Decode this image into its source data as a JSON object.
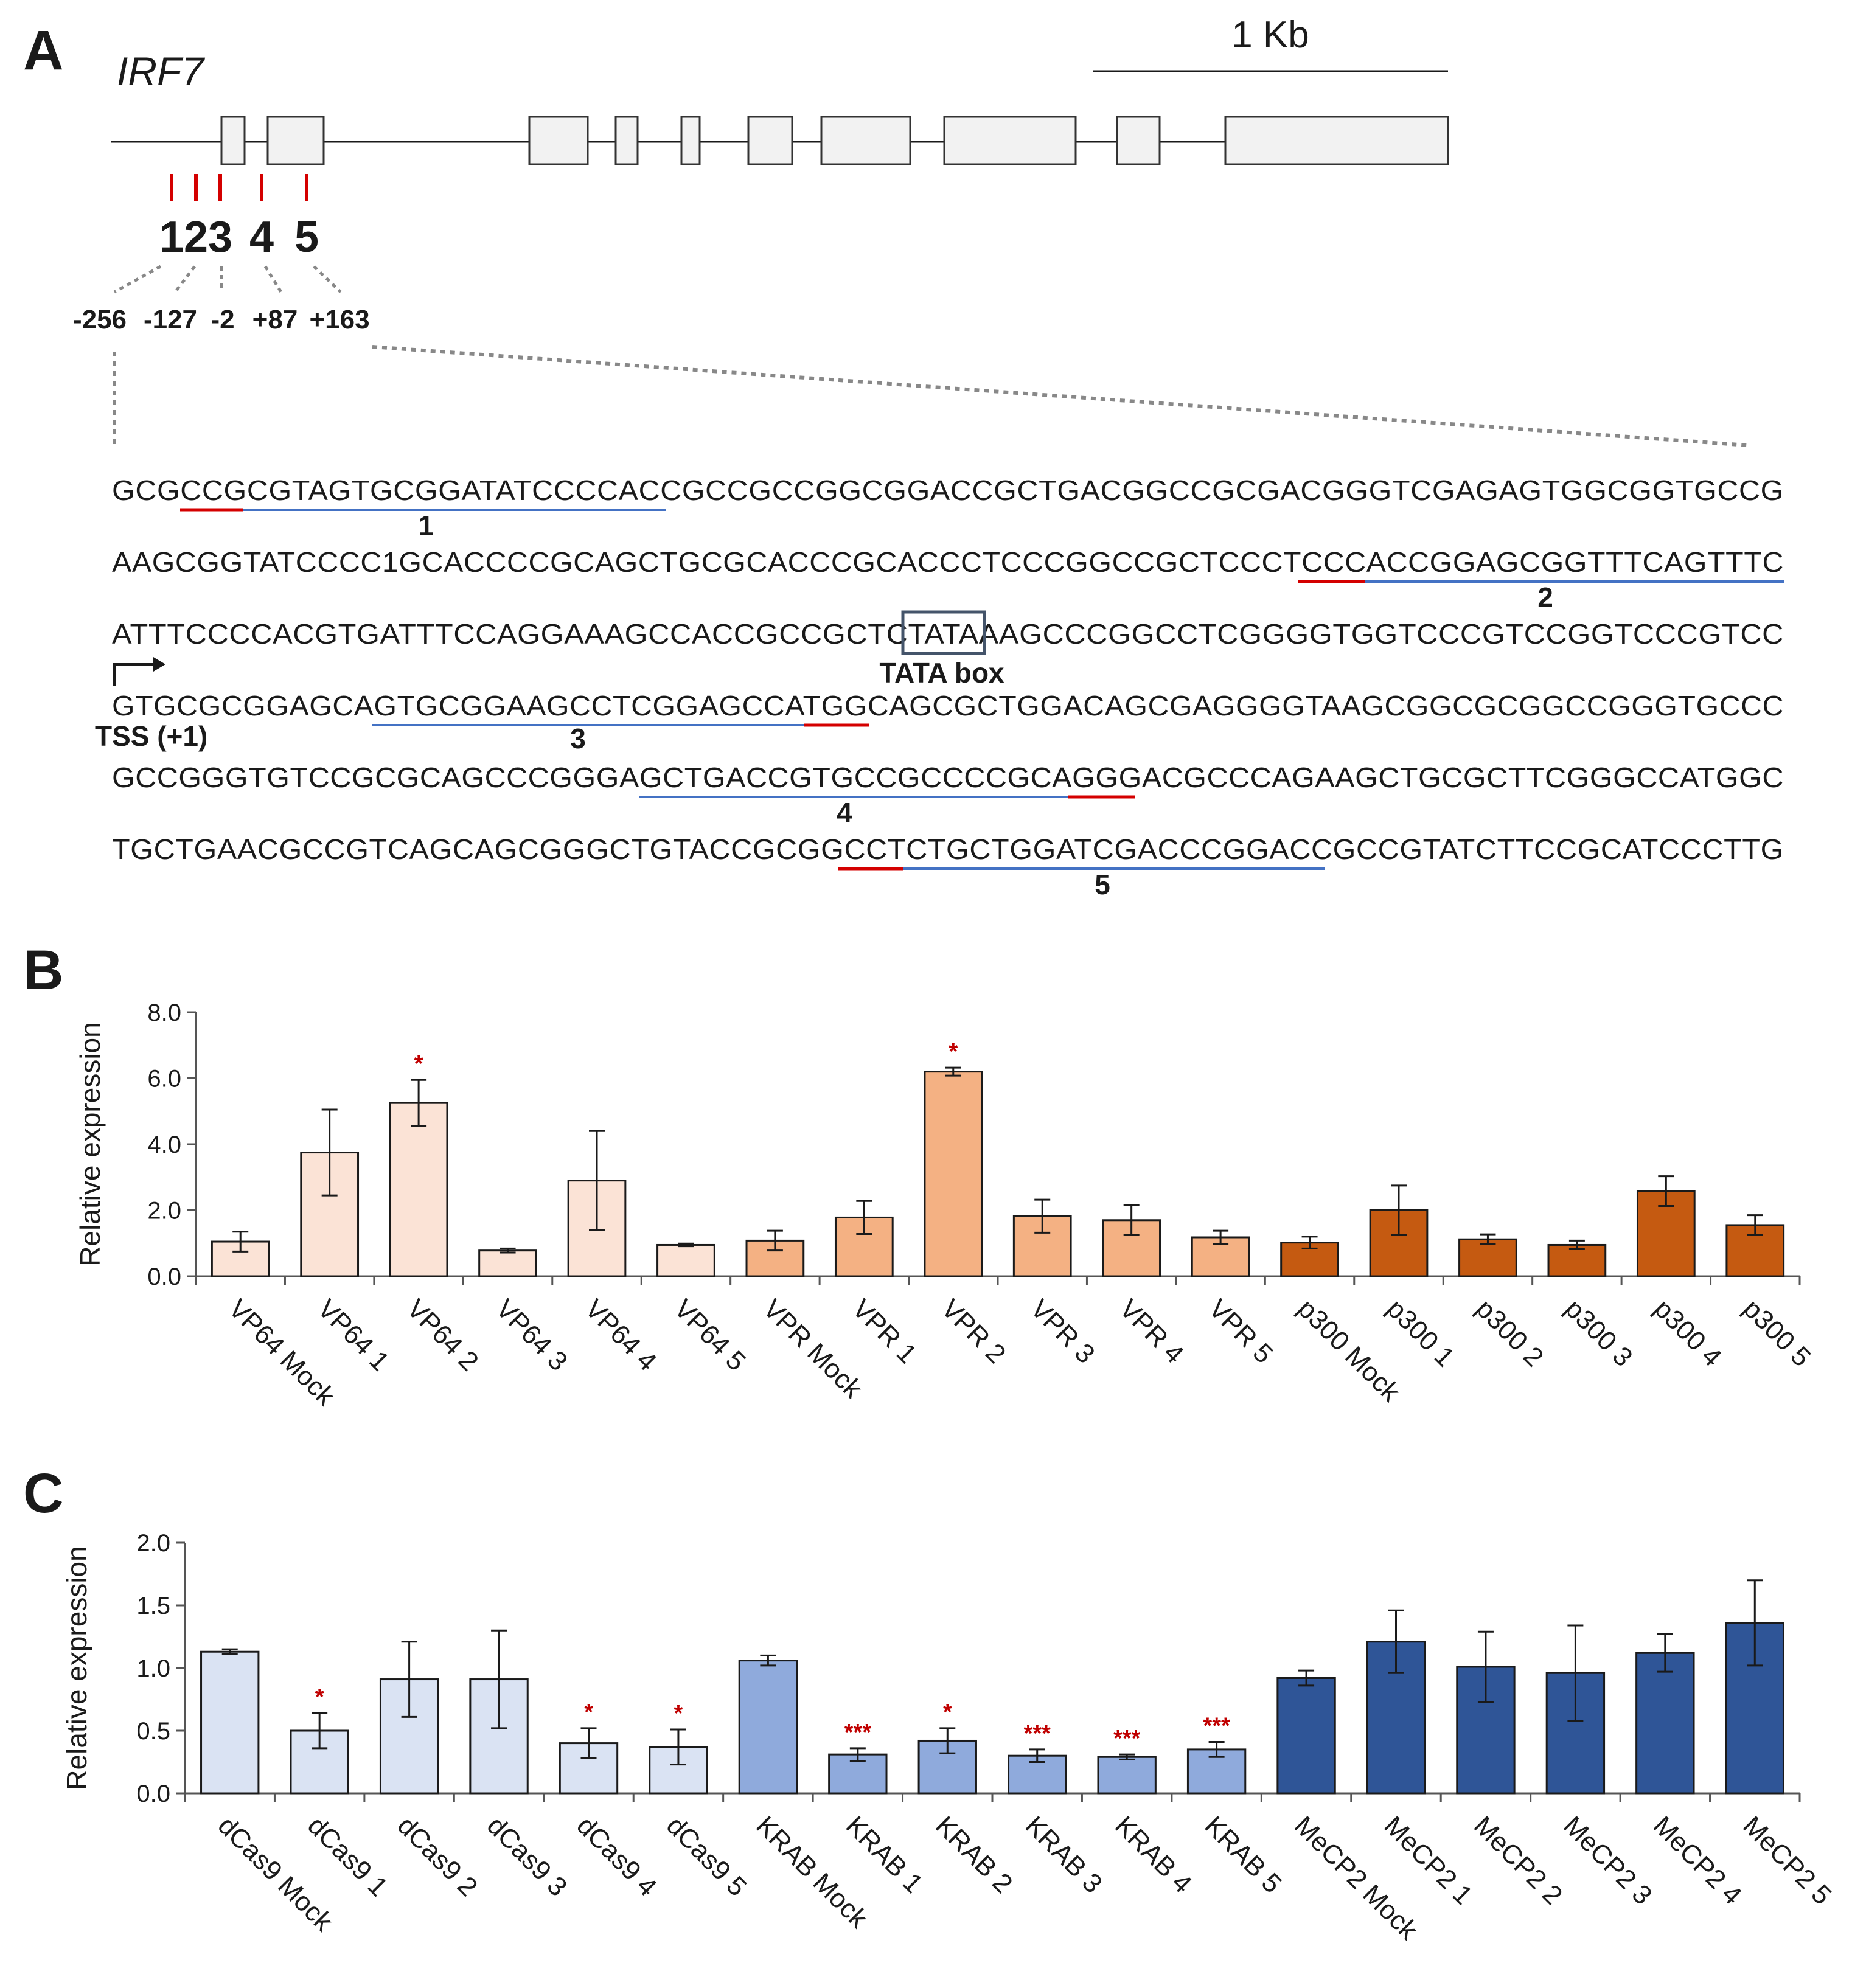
{
  "panels": {
    "a": "A",
    "b": "B",
    "c": "C"
  },
  "gene": {
    "name": "IRF7",
    "scale_label": "1 Kb",
    "site_numbers": [
      "1",
      "2",
      "3",
      "4",
      "5"
    ],
    "site_positions": [
      "-256",
      "-127",
      "-2",
      "+87",
      "+163"
    ]
  },
  "sequence": {
    "lines": [
      "GCGCCGCGTAGTGCGGATATCCCCACCGCCGCCGGCGGACCGCTGACGGCCGCGACGGGTCGAGAGTGGCGGTGCCG",
      "AAGCGGTATCCCC1GCACCCCGCAGCTGCGCACCCGCACCCTCCCGGCCGCTCCCTCCCACCGGAGCGGTTTCAGTTTC",
      "ATTTCCCCACGTGATTTCCAGGAAAGCCACCGCCGCTCTATAAAGCCCGGCCTCGGGGTGGTCCCGTCCGGTCCCGTCC",
      "GTGCGCGGAGCAGTGCGGAAGCCTCGGAGCCATGGCAGCGCTGGACAGCGAGGGGTAAGCGGCGCGGCCGGGTGCCC",
      "GCCGGGTGTCCGCGCAGCCCGGGAGCTGACCGTGCCGCCCCGCAGGGACGCCCAGAAGCTGCGCTTCGGGCCATGGC",
      "TGCTGAACGCCGTCAGCAGCGGGCTGTACCGCGGCCTCTGCTGGATCGACCCGGACCGCCGTATCTTCCGCATCCCTTG"
    ],
    "guide_labels": [
      "1",
      "2",
      "3",
      "4",
      "5"
    ],
    "tata_label": "TATA box",
    "tss_label": "TSS (+1)"
  },
  "chart_data": [
    {
      "type": "bar",
      "panel": "B",
      "ylabel": "Relative expression",
      "xlabel": "",
      "ylim": [
        0,
        8
      ],
      "yticks": [
        "0.0",
        "2.0",
        "4.0",
        "6.0",
        "8.0"
      ],
      "categories": [
        "VP64 Mock",
        "VP64 1",
        "VP64 2",
        "VP64 3",
        "VP64 4",
        "VP64 5",
        "VPR Mock",
        "VPR 1",
        "VPR 2",
        "VPR 3",
        "VPR 4",
        "VPR 5",
        "p300 Mock",
        "p300 1",
        "p300 2",
        "p300 3",
        "p300 4",
        "p300 5"
      ],
      "values": [
        1.05,
        3.75,
        5.25,
        0.78,
        2.9,
        0.95,
        1.08,
        1.78,
        6.2,
        1.82,
        1.7,
        1.18,
        1.02,
        2.0,
        1.12,
        0.95,
        2.58,
        1.55
      ],
      "errors": [
        0.3,
        1.3,
        0.7,
        0.06,
        1.5,
        0.04,
        0.3,
        0.5,
        0.12,
        0.5,
        0.45,
        0.2,
        0.18,
        0.75,
        0.15,
        0.13,
        0.45,
        0.3
      ],
      "significance": [
        "",
        "",
        "*",
        "",
        "",
        "",
        "",
        "",
        "*",
        "",
        "",
        "",
        "",
        "",
        "",
        "",
        "",
        ""
      ],
      "colors": [
        "#fbe3d6",
        "#fbe3d6",
        "#fbe3d6",
        "#fbe3d6",
        "#fbe3d6",
        "#fbe3d6",
        "#f4b183",
        "#f4b183",
        "#f4b183",
        "#f4b183",
        "#f4b183",
        "#f4b183",
        "#c55a11",
        "#c55a11",
        "#c55a11",
        "#c55a11",
        "#c55a11",
        "#c55a11"
      ]
    },
    {
      "type": "bar",
      "panel": "C",
      "ylabel": "Relative expression",
      "xlabel": "",
      "ylim": [
        0,
        2
      ],
      "yticks": [
        "0.0",
        "0.5",
        "1.0",
        "1.5",
        "2.0"
      ],
      "categories": [
        "dCas9 Mock",
        "dCas9 1",
        "dCas9 2",
        "dCas9 3",
        "dCas9 4",
        "dCas9 5",
        "KRAB Mock",
        "KRAB 1",
        "KRAB 2",
        "KRAB 3",
        "KRAB 4",
        "KRAB 5",
        "MeCP2 Mock",
        "MeCP2 1",
        "MeCP2 2",
        "MeCP2 3",
        "MeCP2 4",
        "MeCP2 5"
      ],
      "values": [
        1.13,
        0.5,
        0.91,
        0.91,
        0.4,
        0.37,
        1.06,
        0.31,
        0.42,
        0.3,
        0.29,
        0.35,
        0.92,
        1.21,
        1.01,
        0.96,
        1.12,
        1.36
      ],
      "errors": [
        0.02,
        0.14,
        0.3,
        0.39,
        0.12,
        0.14,
        0.04,
        0.05,
        0.1,
        0.05,
        0.02,
        0.06,
        0.06,
        0.25,
        0.28,
        0.38,
        0.15,
        0.34
      ],
      "significance": [
        "",
        "*",
        "",
        "",
        "*",
        "*",
        "",
        "***",
        "*",
        "***",
        "***",
        "***",
        "",
        "",
        "",
        "",
        "",
        ""
      ],
      "colors": [
        "#dae3f3",
        "#dae3f3",
        "#dae3f3",
        "#dae3f3",
        "#dae3f3",
        "#dae3f3",
        "#8faadc",
        "#8faadc",
        "#8faadc",
        "#8faadc",
        "#8faadc",
        "#8faadc",
        "#2f5597",
        "#2f5597",
        "#2f5597",
        "#2f5597",
        "#2f5597",
        "#2f5597"
      ]
    }
  ]
}
